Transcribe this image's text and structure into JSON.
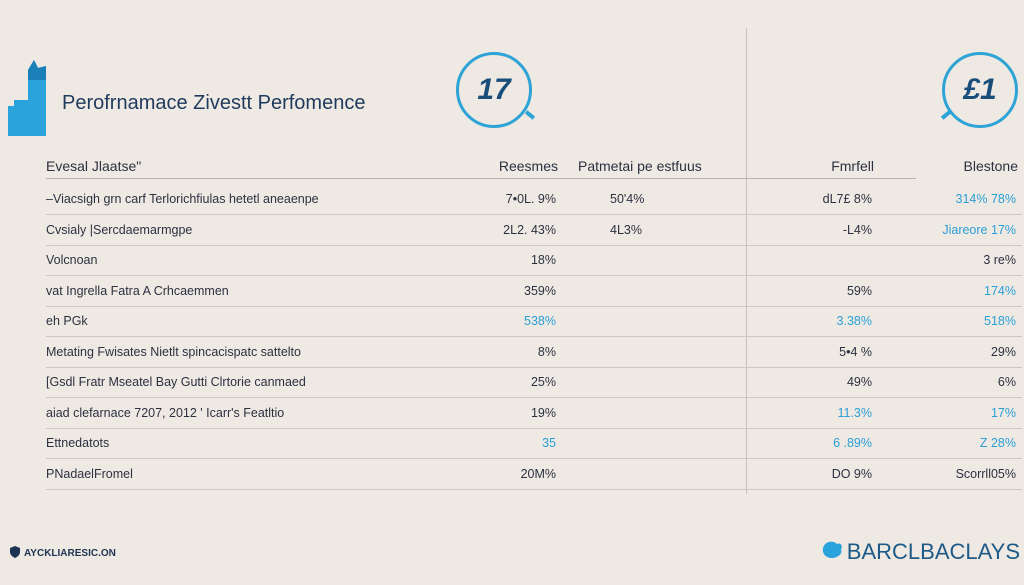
{
  "header": {
    "title": "Perofrnamace Zivestt Perfomence",
    "badge_left": "17",
    "badge_right": "£1"
  },
  "columns": {
    "label": "Evesal Jlaatse\"",
    "c1": "Reesmes",
    "c2": "Patmetai pe estfuus",
    "c3": "Fmrfell",
    "c4": "Blestone"
  },
  "rows": [
    {
      "label": "–Viacsigh grn carf Terlorichfiulas hetetl aneaenpe",
      "c1": "7•0L. 9%",
      "c2": "50'4%",
      "c3": "dL7£ 8%",
      "c4": "314% 78%"
    },
    {
      "label": "Cvsialy |Sercdaemarmgpe",
      "c1": "2L2. 43%",
      "c2": "4L3%",
      "c3": "-L4%",
      "c4": "Jiareore 17%"
    },
    {
      "label": "Volcnoan",
      "c1": "18%",
      "c2": "",
      "c3": "",
      "c4": "3 re%"
    },
    {
      "label": "vat Ingrella Fatra A Crhcaemmen",
      "c1": "359%",
      "c2": "",
      "c3": "59%",
      "c4": "174%"
    },
    {
      "label": "eh PGk",
      "c1": "538%",
      "c2": "",
      "c3": "3.38%",
      "c4": "518%"
    },
    {
      "label": "Metating Fwisates Nietlt spincacispatc sattelto",
      "c1": "8%",
      "c2": "",
      "c3": "5•4 %",
      "c4": "29%"
    },
    {
      "label": "[Gsdl Fratr Mseatel Bay Gutti Clrtorie canmaed",
      "c1": "25%",
      "c2": "",
      "c3": "49%",
      "c4": "6%"
    },
    {
      "label": "aiad clefarnace 7207, 2012 ' Icarr's Featltio",
      "c1": "19%",
      "c2": "",
      "c3": "11.3%",
      "c4": "17%"
    },
    {
      "label": "Ettnedatots",
      "c1": "35",
      "c2": "",
      "c3": "6 .89%",
      "c4": "Z 28%"
    },
    {
      "label": "PNadaelFromel",
      "c1": "20M%",
      "c2": "",
      "c3": "DO 9%",
      "c4": "Scorrll05%"
    }
  ],
  "footer": {
    "left": "AYCKLIARESIC.ON",
    "right": "BARCLBACLAYS"
  },
  "colors": {
    "accent": "#2a9fd6",
    "text": "#2b3140",
    "background": "#efe9e4"
  }
}
